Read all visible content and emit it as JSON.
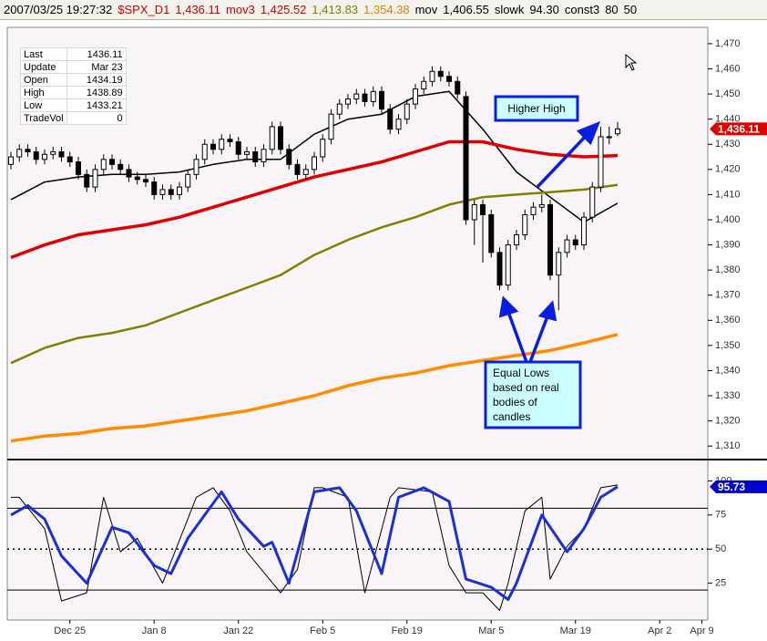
{
  "header": [
    {
      "text": "2007/03/25 19:27:32",
      "color": "#000000"
    },
    {
      "text": "$SPX_D1",
      "color": "#cc0000"
    },
    {
      "text": "1,436.11",
      "color": "#cc0000"
    },
    {
      "text": "mov3",
      "color": "#cc0000"
    },
    {
      "text": "1,425.52",
      "color": "#cc0000"
    },
    {
      "text": "1,413.83",
      "color": "#808000"
    },
    {
      "text": "1,354.38",
      "color": "#e08000"
    },
    {
      "text": "mov",
      "color": "#000000"
    },
    {
      "text": "1,406.55",
      "color": "#000000"
    },
    {
      "text": "slowk",
      "color": "#000000"
    },
    {
      "text": "94.30",
      "color": "#000000"
    },
    {
      "text": "const3",
      "color": "#000000"
    },
    {
      "text": "80",
      "color": "#000000"
    },
    {
      "text": "50",
      "color": "#000000"
    }
  ],
  "info_box": {
    "rows": [
      [
        "Last",
        "1436.11"
      ],
      [
        "Update",
        "Mar 23"
      ],
      [
        "Open",
        "1434.19"
      ],
      [
        "High",
        "1438.89"
      ],
      [
        "Low",
        "1433.21"
      ],
      [
        "TradeVol",
        "0"
      ]
    ]
  },
  "chart_data": [
    {
      "type": "candlestick",
      "xlim": [
        -0.43,
        82.7
      ],
      "ylim": [
        1305,
        1476.5
      ],
      "yticks": [
        {
          "value": 1310,
          "label": "1,310"
        },
        {
          "value": 1320,
          "label": "1,320"
        },
        {
          "value": 1330,
          "label": "1,330"
        },
        {
          "value": 1340,
          "label": "1,340"
        },
        {
          "value": 1350,
          "label": "1,350"
        },
        {
          "value": 1360,
          "label": "1,360"
        },
        {
          "value": 1370,
          "label": "1,370"
        },
        {
          "value": 1380,
          "label": "1,380"
        },
        {
          "value": 1390,
          "label": "1,390"
        },
        {
          "value": 1400,
          "label": "1,400"
        },
        {
          "value": 1410,
          "label": "1,410"
        },
        {
          "value": 1420,
          "label": "1,420"
        },
        {
          "value": 1430,
          "label": "1,430"
        },
        {
          "value": 1440,
          "label": "1,440"
        },
        {
          "value": 1450,
          "label": "1,450"
        },
        {
          "value": 1460,
          "label": "1,460"
        },
        {
          "value": 1470,
          "label": "1,470"
        }
      ],
      "open": [
        1422,
        1425,
        1428,
        1427,
        1424,
        1426,
        1427,
        1425,
        1423,
        1418,
        1413,
        1420,
        1424,
        1422,
        1420,
        1417,
        1416,
        1415,
        1410,
        1412,
        1410,
        1413,
        1418,
        1424,
        1430,
        1428,
        1432,
        1431,
        1426,
        1427,
        1423,
        1428,
        1437,
        1428,
        1422,
        1418,
        1420,
        1425,
        1432,
        1442,
        1446,
        1448,
        1450,
        1447,
        1451,
        1444,
        1436,
        1440,
        1446,
        1452,
        1455,
        1459,
        1457,
        1455,
        1449,
        1400,
        1406,
        1402,
        1387,
        1374,
        1390,
        1394,
        1402,
        1405,
        1406,
        1378,
        1387,
        1392,
        1390,
        1401,
        1413,
        1433,
        1434.19
      ],
      "high": [
        1427,
        1430,
        1430,
        1429,
        1428,
        1429,
        1429,
        1427,
        1425,
        1420,
        1422,
        1426,
        1426,
        1424,
        1422,
        1419,
        1418,
        1417,
        1414,
        1414,
        1415,
        1420,
        1426,
        1432,
        1432,
        1434,
        1434,
        1433,
        1429,
        1429,
        1430,
        1439,
        1439,
        1430,
        1424,
        1422,
        1427,
        1434,
        1444,
        1448,
        1450,
        1452,
        1452,
        1453,
        1453,
        1446,
        1442,
        1448,
        1454,
        1457,
        1461,
        1461,
        1459,
        1457,
        1451,
        1408,
        1408,
        1404,
        1389,
        1392,
        1396,
        1404,
        1407,
        1410,
        1408,
        1389,
        1394,
        1394,
        1403,
        1415,
        1437,
        1437,
        1438.89
      ],
      "low": [
        1420,
        1423,
        1425,
        1422,
        1422,
        1424,
        1423,
        1421,
        1416,
        1411,
        1411,
        1418,
        1420,
        1418,
        1415,
        1414,
        1413,
        1408,
        1408,
        1408,
        1408,
        1411,
        1416,
        1422,
        1426,
        1426,
        1429,
        1424,
        1424,
        1421,
        1421,
        1426,
        1426,
        1420,
        1416,
        1416,
        1418,
        1423,
        1430,
        1440,
        1444,
        1446,
        1445,
        1445,
        1442,
        1434,
        1434,
        1438,
        1444,
        1450,
        1453,
        1455,
        1453,
        1448,
        1398,
        1390,
        1383,
        1385,
        1372,
        1372,
        1388,
        1392,
        1400,
        1403,
        1376,
        1364,
        1385,
        1388,
        1388,
        1399,
        1411,
        1430,
        1433.21
      ],
      "close": [
        1425,
        1428,
        1427,
        1424,
        1426,
        1427,
        1425,
        1423,
        1418,
        1413,
        1420,
        1424,
        1422,
        1420,
        1417,
        1416,
        1415,
        1410,
        1412,
        1410,
        1413,
        1418,
        1424,
        1430,
        1428,
        1432,
        1431,
        1426,
        1427,
        1423,
        1428,
        1437,
        1428,
        1422,
        1418,
        1420,
        1425,
        1432,
        1442,
        1446,
        1448,
        1450,
        1447,
        1451,
        1444,
        1436,
        1440,
        1446,
        1452,
        1455,
        1459,
        1457,
        1455,
        1450,
        1400,
        1406,
        1402,
        1387,
        1374,
        1390,
        1394,
        1402,
        1405,
        1406,
        1378,
        1387,
        1392,
        1390,
        1401,
        1413,
        1433,
        1433,
        1436.11
      ],
      "up_color": "#ffffff",
      "down_color": "#000000",
      "lines": [
        {
          "color": "#000000",
          "width": 1.5,
          "x": [
            0,
            4,
            8,
            12,
            16,
            20,
            24,
            28,
            32,
            36,
            40,
            44,
            48,
            52,
            56,
            60,
            64,
            68,
            72
          ],
          "values": [
            1408,
            1415,
            1417,
            1418,
            1418,
            1419,
            1422,
            1424,
            1424,
            1434,
            1440,
            1442,
            1449,
            1451,
            1436,
            1419,
            1409,
            1399,
            1406.55
          ]
        },
        {
          "color": "#e00000",
          "width": 3.5,
          "x": [
            0,
            4,
            8,
            12,
            16,
            20,
            24,
            28,
            32,
            36,
            40,
            44,
            48,
            52,
            56,
            60,
            64,
            68,
            72
          ],
          "values": [
            1385,
            1390,
            1394,
            1396,
            1398,
            1401,
            1405,
            1409,
            1413,
            1417,
            1420,
            1423,
            1427,
            1431,
            1431,
            1428,
            1426,
            1425,
            1425.52
          ]
        },
        {
          "color": "#808000",
          "width": 2.5,
          "x": [
            0,
            4,
            8,
            12,
            16,
            20,
            24,
            28,
            32,
            36,
            40,
            44,
            48,
            52,
            56,
            60,
            64,
            68,
            72
          ],
          "values": [
            1343,
            1349,
            1353,
            1355,
            1358,
            1363,
            1368,
            1373,
            1378,
            1386,
            1392,
            1397,
            1401,
            1406,
            1409,
            1410,
            1411,
            1412,
            1413.83
          ]
        },
        {
          "color": "#ff8c00",
          "width": 3.5,
          "x": [
            0,
            4,
            8,
            12,
            16,
            20,
            24,
            28,
            32,
            36,
            40,
            44,
            48,
            52,
            56,
            60,
            64,
            68,
            72
          ],
          "values": [
            1312,
            1314,
            1315,
            1317,
            1318,
            1320,
            1322,
            1324,
            1327,
            1330,
            1334,
            1337,
            1339,
            1342,
            1344,
            1346,
            1348,
            1351,
            1354.38
          ]
        }
      ],
      "badge": {
        "value": 1436.11,
        "label": "1,436.11",
        "color": "#e00000"
      },
      "annotations": {
        "higher_high": "Higher High",
        "equal_lows": [
          "Equal Lows",
          "based on real",
          "bodies of",
          "candles"
        ]
      }
    },
    {
      "type": "line",
      "xlim": [
        -0.43,
        82.7
      ],
      "ylim": [
        -2,
        115
      ],
      "yticks": [
        25,
        50,
        75,
        100
      ],
      "xticks": [
        {
          "value": 7,
          "label": "Dec 25"
        },
        {
          "value": 17,
          "label": "Jan 8"
        },
        {
          "value": 27,
          "label": "Jan 22"
        },
        {
          "value": 37,
          "label": "Feb 5"
        },
        {
          "value": 47,
          "label": "Feb 19"
        },
        {
          "value": 57,
          "label": "Mar 5"
        },
        {
          "value": 67,
          "label": "Mar 19"
        },
        {
          "value": 77,
          "label": "Apr 2"
        },
        {
          "value": 82,
          "label": "Apr 9"
        }
      ],
      "levels": [
        80,
        50,
        20
      ],
      "level_styles": [
        "solid",
        "dotted",
        "solid"
      ],
      "series": [
        {
          "color": "#000000",
          "width": 1,
          "x": [
            0,
            1,
            4,
            6,
            9,
            11,
            13,
            15,
            18,
            22,
            24,
            26,
            28,
            32,
            34,
            36,
            37,
            40,
            42,
            45,
            46,
            50,
            52,
            54,
            56,
            58,
            59,
            61,
            63,
            64,
            66,
            68,
            70,
            72
          ],
          "values": [
            88,
            88,
            65,
            12,
            18,
            88,
            48,
            58,
            25,
            88,
            95,
            78,
            48,
            18,
            35,
            95,
            95,
            88,
            18,
            88,
            95,
            92,
            38,
            18,
            18,
            5,
            25,
            78,
            88,
            28,
            52,
            65,
            95,
            97
          ]
        },
        {
          "color": "#1a2fd6",
          "width": 3,
          "x": [
            0,
            2,
            4,
            6,
            9,
            12,
            14,
            17,
            19,
            21,
            25,
            27,
            30,
            31,
            33,
            36,
            39,
            41,
            44,
            46,
            49,
            52,
            54,
            57,
            59,
            60,
            63,
            66,
            68,
            70,
            72
          ],
          "values": [
            75,
            82,
            72,
            45,
            25,
            66,
            62,
            38,
            32,
            58,
            92,
            72,
            52,
            55,
            25,
            92,
            95,
            78,
            32,
            88,
            95,
            85,
            28,
            22,
            13,
            25,
            75,
            48,
            65,
            88,
            95.73
          ]
        }
      ],
      "badge": {
        "value": 95.73,
        "label": "95.73",
        "color": "#0000cc"
      }
    }
  ]
}
